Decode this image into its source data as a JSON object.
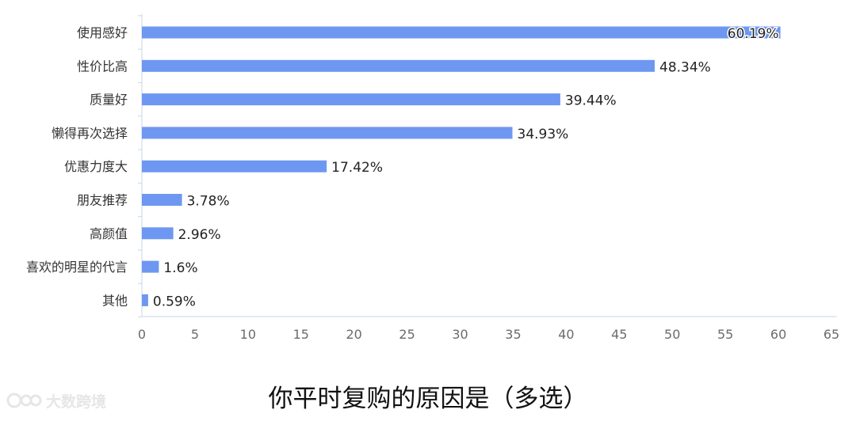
{
  "chart_data": {
    "type": "bar",
    "orientation": "horizontal",
    "title": "你平时复购的原因是（多选）",
    "categories": [
      "使用感好",
      "性价比高",
      "质量好",
      "懒得再次选择",
      "优惠力度大",
      "朋友推荐",
      "高颜值",
      "喜欢的明星的代言",
      "其他"
    ],
    "values": [
      60.19,
      48.34,
      39.44,
      34.93,
      17.42,
      3.78,
      2.96,
      1.6,
      0.59
    ],
    "value_labels": [
      "60.19%",
      "48.34%",
      "39.44%",
      "34.93%",
      "17.42%",
      "3.78%",
      "2.96%",
      "1.6%",
      "0.59%"
    ],
    "xlim": [
      0,
      65
    ],
    "xticks": [
      0,
      5,
      10,
      15,
      20,
      25,
      30,
      35,
      40,
      45,
      50,
      55,
      60,
      65
    ],
    "xlabel": "",
    "ylabel": "",
    "grid": false,
    "bar_color": "#6e97f1"
  },
  "watermark": {
    "text": "大数跨境"
  }
}
